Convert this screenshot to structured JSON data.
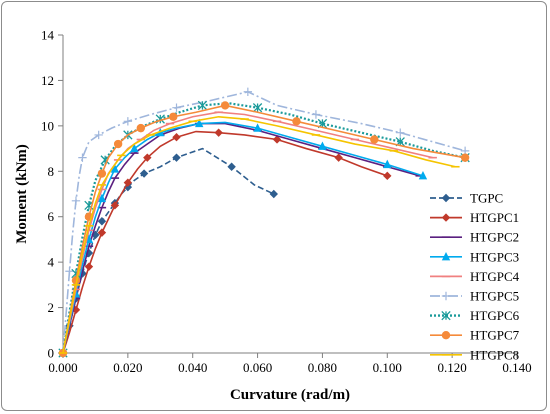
{
  "chart_data": {
    "type": "line",
    "title": "",
    "xlabel": "Curvature (rad/m)",
    "ylabel": "Moment (kNm)",
    "xlim": [
      0,
      0.14
    ],
    "ylim": [
      0,
      14
    ],
    "xticks": [
      "0.000",
      "0.020",
      "0.040",
      "0.060",
      "0.080",
      "0.100",
      "0.120",
      "0.140"
    ],
    "yticks": [
      "0",
      "2",
      "4",
      "6",
      "8",
      "10",
      "12",
      "14"
    ],
    "grid": false,
    "legend_position": "right",
    "series": [
      {
        "name": "TGPC",
        "color": "#2e5e8f",
        "dash": "dashed",
        "marker": "diamond",
        "x": [
          0.0,
          0.001,
          0.002,
          0.003,
          0.004,
          0.005,
          0.006,
          0.007,
          0.008,
          0.009,
          0.01,
          0.011,
          0.012,
          0.014,
          0.016,
          0.018,
          0.02,
          0.022,
          0.025,
          0.03,
          0.035,
          0.043,
          0.052,
          0.059,
          0.065
        ],
        "y": [
          0.0,
          0.6,
          1.2,
          1.8,
          2.4,
          3.0,
          3.5,
          4.0,
          4.4,
          4.8,
          5.2,
          5.5,
          5.8,
          6.2,
          6.6,
          7.0,
          7.3,
          7.6,
          7.9,
          8.2,
          8.6,
          9.0,
          8.2,
          7.4,
          7.0
        ]
      },
      {
        "name": "HTGPC1",
        "color": "#c0392b",
        "dash": "solid",
        "marker": "diamond",
        "x": [
          0.0,
          0.002,
          0.004,
          0.006,
          0.008,
          0.01,
          0.012,
          0.014,
          0.016,
          0.018,
          0.02,
          0.023,
          0.026,
          0.03,
          0.035,
          0.041,
          0.048,
          0.056,
          0.066,
          0.075,
          0.085,
          0.092,
          0.1
        ],
        "y": [
          0.0,
          0.9,
          1.9,
          2.9,
          3.8,
          4.6,
          5.3,
          5.9,
          6.5,
          7.0,
          7.5,
          8.1,
          8.6,
          9.1,
          9.5,
          9.75,
          9.7,
          9.6,
          9.4,
          9.0,
          8.6,
          8.2,
          7.8
        ]
      },
      {
        "name": "HTGPC2",
        "color": "#5b2080",
        "dash": "solid",
        "marker": "dash",
        "x": [
          0.0,
          0.002,
          0.004,
          0.006,
          0.008,
          0.01,
          0.012,
          0.014,
          0.016,
          0.019,
          0.022,
          0.026,
          0.03,
          0.036,
          0.042,
          0.05,
          0.06,
          0.07,
          0.08,
          0.09,
          0.1,
          0.11
        ],
        "y": [
          0.0,
          1.2,
          2.4,
          3.6,
          4.7,
          5.6,
          6.4,
          7.1,
          7.7,
          8.3,
          8.8,
          9.2,
          9.6,
          9.9,
          10.1,
          10.1,
          9.8,
          9.4,
          9.0,
          8.6,
          8.2,
          7.8
        ]
      },
      {
        "name": "HTGPC3",
        "color": "#00aaee",
        "dash": "solid",
        "marker": "triangle",
        "x": [
          0.0,
          0.002,
          0.004,
          0.006,
          0.008,
          0.01,
          0.012,
          0.014,
          0.016,
          0.019,
          0.022,
          0.026,
          0.03,
          0.035,
          0.042,
          0.05,
          0.06,
          0.07,
          0.08,
          0.09,
          0.1,
          0.111
        ],
        "y": [
          0.0,
          1.3,
          2.6,
          3.9,
          5.0,
          6.0,
          6.8,
          7.5,
          8.1,
          8.6,
          9.0,
          9.4,
          9.7,
          9.9,
          10.1,
          10.15,
          9.9,
          9.5,
          9.1,
          8.7,
          8.3,
          7.8
        ]
      },
      {
        "name": "HTGPC4",
        "color": "#f08080",
        "dash": "solid",
        "marker": "dash",
        "x": [
          0.0,
          0.002,
          0.004,
          0.006,
          0.008,
          0.01,
          0.012,
          0.014,
          0.017,
          0.02,
          0.024,
          0.028,
          0.033,
          0.04,
          0.048,
          0.056,
          0.066,
          0.078,
          0.09,
          0.102,
          0.114
        ],
        "y": [
          0.0,
          1.4,
          2.8,
          4.2,
          5.4,
          6.4,
          7.2,
          7.9,
          8.5,
          9.0,
          9.4,
          9.8,
          10.1,
          10.4,
          10.6,
          10.5,
          10.2,
          9.8,
          9.4,
          9.0,
          8.6
        ]
      },
      {
        "name": "HTGPC5",
        "color": "#9fb6dc",
        "dash": "dashdot",
        "marker": "plus",
        "x": [
          0.0,
          0.001,
          0.002,
          0.003,
          0.004,
          0.005,
          0.006,
          0.008,
          0.011,
          0.015,
          0.02,
          0.027,
          0.035,
          0.045,
          0.057,
          0.066,
          0.078,
          0.092,
          0.104,
          0.114,
          0.124
        ],
        "y": [
          0.0,
          1.8,
          3.6,
          5.3,
          6.7,
          7.8,
          8.6,
          9.3,
          9.6,
          9.9,
          10.2,
          10.5,
          10.8,
          11.1,
          11.5,
          10.9,
          10.5,
          10.1,
          9.7,
          9.3,
          8.9
        ]
      },
      {
        "name": "HTGPC6",
        "color": "#1a9a9a",
        "dash": "dotted",
        "marker": "asterisk",
        "x": [
          0.0,
          0.002,
          0.004,
          0.006,
          0.008,
          0.01,
          0.013,
          0.016,
          0.02,
          0.025,
          0.03,
          0.036,
          0.043,
          0.051,
          0.06,
          0.07,
          0.08,
          0.092,
          0.104,
          0.114,
          0.124
        ],
        "y": [
          0.0,
          1.8,
          3.5,
          5.1,
          6.5,
          7.6,
          8.5,
          9.1,
          9.6,
          10.0,
          10.3,
          10.6,
          10.9,
          11.0,
          10.8,
          10.5,
          10.1,
          9.7,
          9.3,
          8.9,
          8.6
        ]
      },
      {
        "name": "HTGPC7",
        "color": "#f58a3a",
        "dash": "solid",
        "marker": "circle",
        "x": [
          0.0,
          0.002,
          0.004,
          0.006,
          0.008,
          0.01,
          0.012,
          0.014,
          0.017,
          0.02,
          0.024,
          0.029,
          0.034,
          0.041,
          0.05,
          0.06,
          0.072,
          0.084,
          0.096,
          0.108,
          0.124
        ],
        "y": [
          0.0,
          1.6,
          3.2,
          4.7,
          6.0,
          7.1,
          7.9,
          8.6,
          9.2,
          9.6,
          9.9,
          10.2,
          10.4,
          10.6,
          10.9,
          10.6,
          10.2,
          9.8,
          9.4,
          9.0,
          8.6
        ]
      },
      {
        "name": "HTGPC8",
        "color": "#f5c400",
        "dash": "solid",
        "marker": "dash",
        "x": [
          0.0,
          0.002,
          0.004,
          0.006,
          0.008,
          0.01,
          0.012,
          0.015,
          0.018,
          0.022,
          0.027,
          0.033,
          0.04,
          0.048,
          0.056,
          0.066,
          0.078,
          0.09,
          0.102,
          0.112,
          0.121
        ],
        "y": [
          0.0,
          1.5,
          3.0,
          4.4,
          5.6,
          6.6,
          7.4,
          8.1,
          8.7,
          9.2,
          9.6,
          9.9,
          10.2,
          10.4,
          10.3,
          10.0,
          9.6,
          9.2,
          8.9,
          8.5,
          8.2
        ]
      }
    ]
  }
}
